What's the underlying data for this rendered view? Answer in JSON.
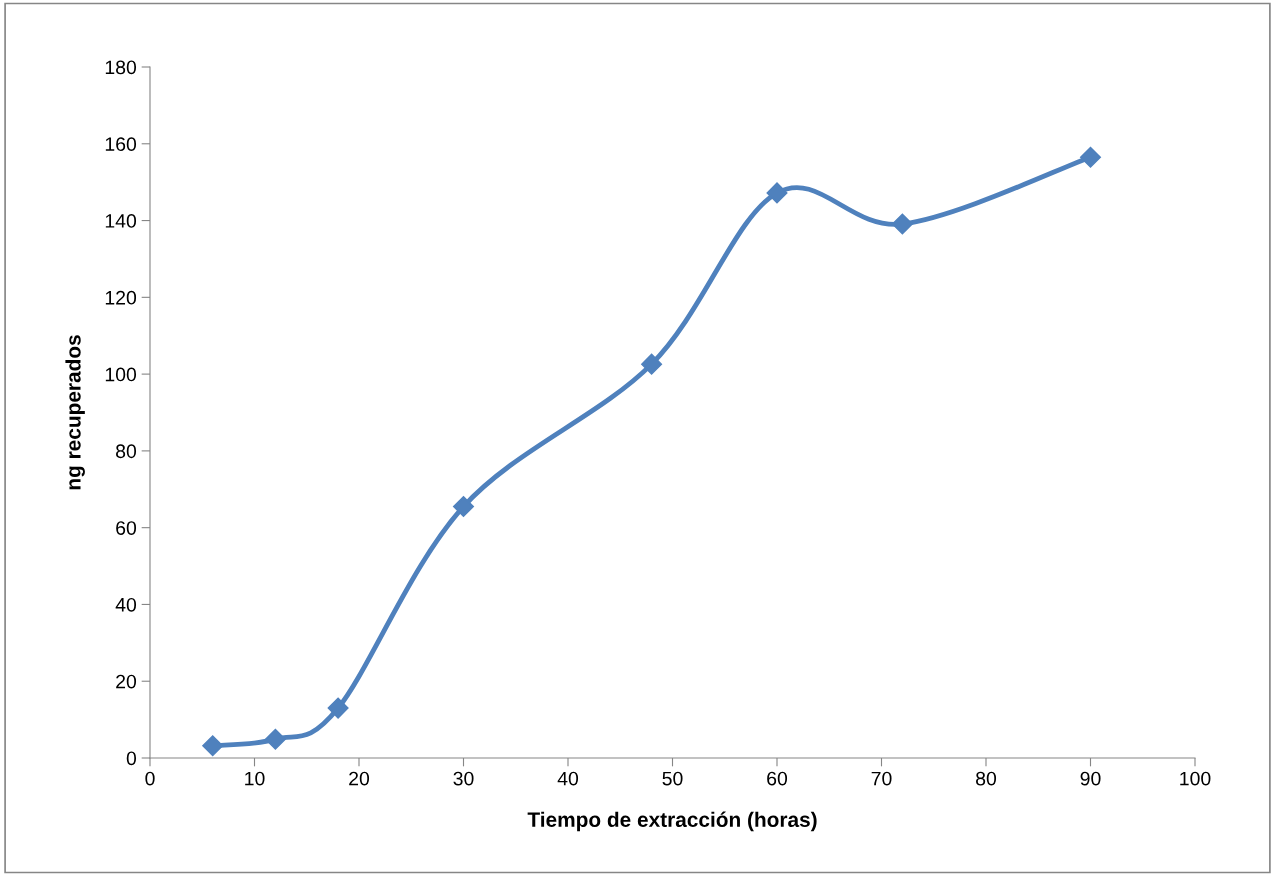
{
  "chart_data": {
    "type": "line",
    "xlabel": "Tiempo de extracción (horas)",
    "ylabel": "ng recuperados",
    "x": [
      6,
      12,
      18,
      30,
      48,
      60,
      72,
      90
    ],
    "series": [
      {
        "color": "#4f81bd",
        "values": [
          3.2,
          4.9,
          13,
          65.5,
          102.6,
          147.2,
          139.1,
          156.5
        ]
      }
    ],
    "xlim": [
      0,
      100
    ],
    "xticks": [
      0,
      10,
      20,
      30,
      40,
      50,
      60,
      70,
      80,
      90,
      100
    ],
    "ylim": [
      0,
      180
    ],
    "yticks": [
      0,
      20,
      40,
      60,
      80,
      100,
      120,
      140,
      160,
      180
    ],
    "marker": "diamond",
    "line_style": "solid",
    "grid": false,
    "legend": false
  }
}
